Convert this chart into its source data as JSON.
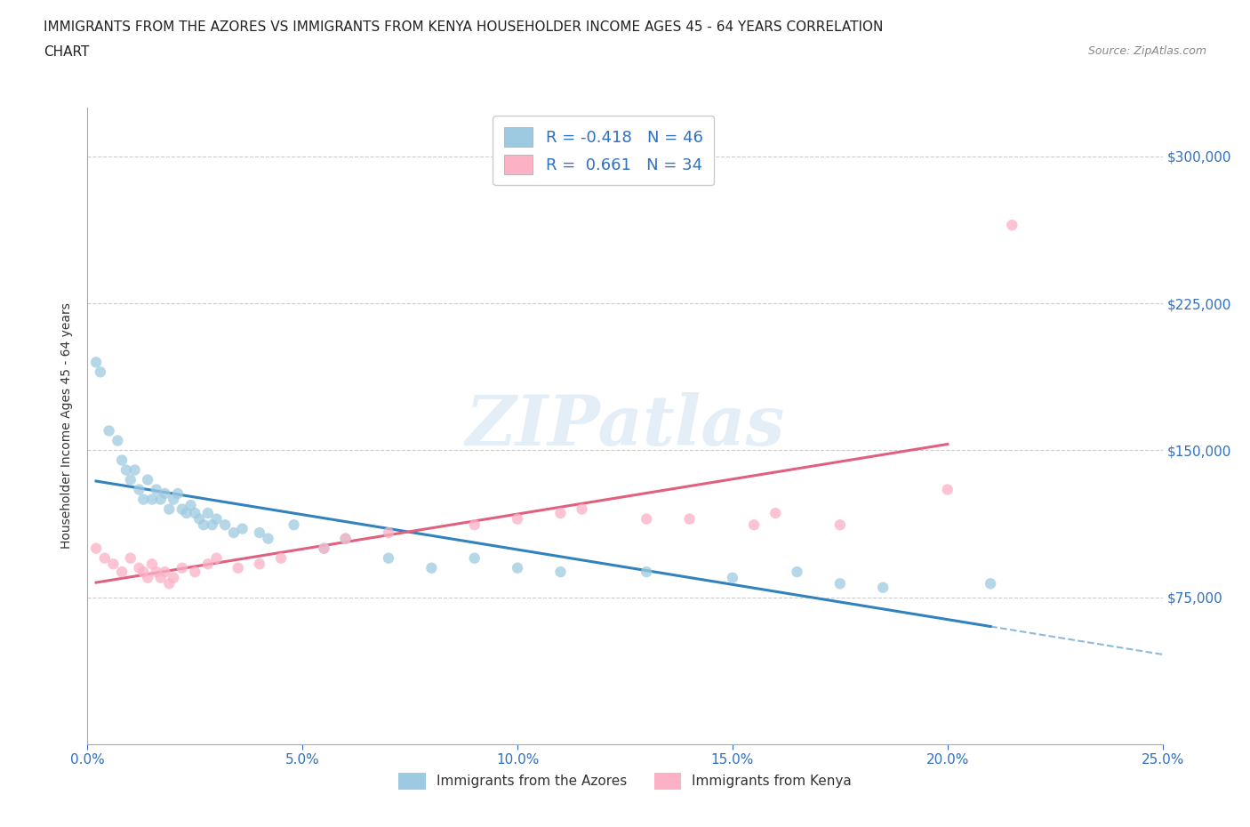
{
  "title_line1": "IMMIGRANTS FROM THE AZORES VS IMMIGRANTS FROM KENYA HOUSEHOLDER INCOME AGES 45 - 64 YEARS CORRELATION",
  "title_line2": "CHART",
  "source": "Source: ZipAtlas.com",
  "ylabel": "Householder Income Ages 45 - 64 years",
  "xlim": [
    0.0,
    0.25
  ],
  "ylim": [
    0,
    325000
  ],
  "yticks": [
    0,
    75000,
    150000,
    225000,
    300000
  ],
  "ytick_labels": [
    "",
    "$75,000",
    "$150,000",
    "$225,000",
    "$300,000"
  ],
  "xtick_labels": [
    "0.0%",
    "5.0%",
    "10.0%",
    "15.0%",
    "20.0%",
    "25.0%"
  ],
  "xticks": [
    0.0,
    0.05,
    0.1,
    0.15,
    0.2,
    0.25
  ],
  "azores_color": "#9ecae1",
  "kenya_color": "#fcb1c5",
  "trend_azores_color": "#3182bd",
  "trend_kenya_color": "#e0607e",
  "R_azores": -0.418,
  "N_azores": 46,
  "R_kenya": 0.661,
  "N_kenya": 34,
  "watermark": "ZIPatlas",
  "background_color": "#ffffff",
  "grid_color": "#cccccc",
  "azores_x": [
    0.002,
    0.003,
    0.005,
    0.007,
    0.008,
    0.009,
    0.01,
    0.011,
    0.012,
    0.013,
    0.014,
    0.015,
    0.016,
    0.017,
    0.018,
    0.019,
    0.02,
    0.021,
    0.022,
    0.023,
    0.024,
    0.025,
    0.026,
    0.027,
    0.028,
    0.029,
    0.03,
    0.032,
    0.034,
    0.036,
    0.04,
    0.042,
    0.048,
    0.055,
    0.06,
    0.07,
    0.08,
    0.09,
    0.1,
    0.11,
    0.13,
    0.15,
    0.165,
    0.175,
    0.185,
    0.21
  ],
  "azores_y": [
    195000,
    190000,
    160000,
    155000,
    145000,
    140000,
    135000,
    140000,
    130000,
    125000,
    135000,
    125000,
    130000,
    125000,
    128000,
    120000,
    125000,
    128000,
    120000,
    118000,
    122000,
    118000,
    115000,
    112000,
    118000,
    112000,
    115000,
    112000,
    108000,
    110000,
    108000,
    105000,
    112000,
    100000,
    105000,
    95000,
    90000,
    95000,
    90000,
    88000,
    88000,
    85000,
    88000,
    82000,
    80000,
    82000
  ],
  "kenya_x": [
    0.002,
    0.004,
    0.006,
    0.008,
    0.01,
    0.012,
    0.013,
    0.014,
    0.015,
    0.016,
    0.017,
    0.018,
    0.019,
    0.02,
    0.022,
    0.025,
    0.028,
    0.03,
    0.035,
    0.04,
    0.045,
    0.055,
    0.06,
    0.07,
    0.09,
    0.1,
    0.11,
    0.115,
    0.13,
    0.14,
    0.155,
    0.16,
    0.175,
    0.2
  ],
  "kenya_y": [
    100000,
    95000,
    92000,
    88000,
    95000,
    90000,
    88000,
    85000,
    92000,
    88000,
    85000,
    88000,
    82000,
    85000,
    90000,
    88000,
    92000,
    95000,
    90000,
    92000,
    95000,
    100000,
    105000,
    108000,
    112000,
    115000,
    118000,
    120000,
    115000,
    115000,
    112000,
    118000,
    112000,
    130000
  ],
  "kenya_outlier_x": [
    0.215
  ],
  "kenya_outlier_y": [
    265000
  ],
  "azores_trend_x_start": 0.002,
  "azores_trend_x_solid_end": 0.21,
  "azores_trend_x_dashed_end": 0.25,
  "kenya_trend_x_start": 0.002,
  "kenya_trend_x_end": 0.2
}
